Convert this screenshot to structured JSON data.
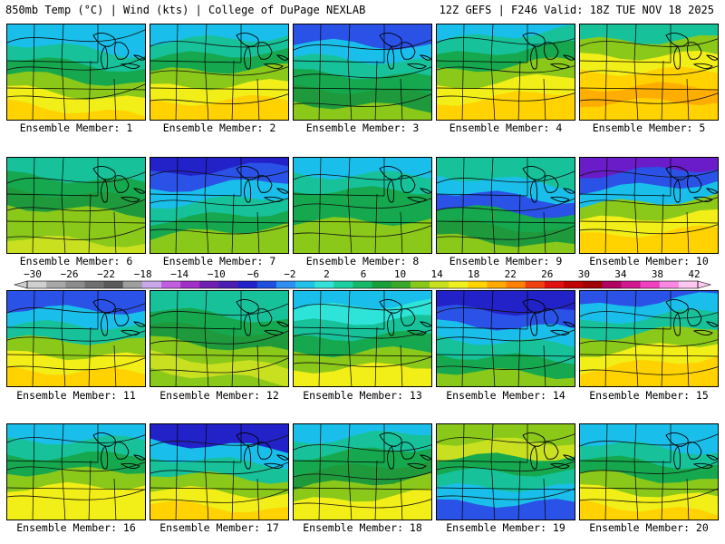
{
  "header": {
    "left": "850mb Temp (°C) | Wind (kts) | College of DuPage NEXLAB",
    "right": "12Z GEFS | F246 Valid: 18Z TUE NOV 18 2025"
  },
  "members": [
    {
      "label": "Ensemble Member: 1"
    },
    {
      "label": "Ensemble Member: 2"
    },
    {
      "label": "Ensemble Member: 3"
    },
    {
      "label": "Ensemble Member: 4"
    },
    {
      "label": "Ensemble Member: 5"
    },
    {
      "label": "Ensemble Member: 6"
    },
    {
      "label": "Ensemble Member: 7"
    },
    {
      "label": "Ensemble Member: 8"
    },
    {
      "label": "Ensemble Member: 9"
    },
    {
      "label": "Ensemble Member: 10"
    },
    {
      "label": "Ensemble Member: 11"
    },
    {
      "label": "Ensemble Member: 12"
    },
    {
      "label": "Ensemble Member: 13"
    },
    {
      "label": "Ensemble Member: 14"
    },
    {
      "label": "Ensemble Member: 15"
    },
    {
      "label": "Ensemble Member: 16"
    },
    {
      "label": "Ensemble Member: 17"
    },
    {
      "label": "Ensemble Member: 18"
    },
    {
      "label": "Ensemble Member: 19"
    },
    {
      "label": "Ensemble Member: 20"
    }
  ],
  "colorbar": {
    "labels": [
      "−30",
      "−26",
      "−22",
      "−18",
      "−14",
      "−10",
      "−6",
      "−2",
      "2",
      "6",
      "10",
      "14",
      "18",
      "22",
      "26",
      "30",
      "34",
      "38",
      "42"
    ],
    "colors": [
      "#cfcfcf",
      "#a8a8a8",
      "#8c8c8c",
      "#707070",
      "#5a5a5a",
      "#9e9e9e",
      "#c8a8e8",
      "#c060e0",
      "#a030c8",
      "#7020b0",
      "#4b1fb0",
      "#2222c8",
      "#2050e0",
      "#2f8ff0",
      "#23c0e8",
      "#34e0d8",
      "#1dcfa0",
      "#16b86a",
      "#1a9e3c",
      "#39a82a",
      "#88c81a",
      "#c8e020",
      "#f0f020",
      "#ffd400",
      "#ffa800",
      "#ff8000",
      "#f04010",
      "#e01010",
      "#c00000",
      "#a00000",
      "#b00060",
      "#d01890",
      "#f040c0",
      "#f888e0",
      "#ffc8f0"
    ]
  },
  "palette": {
    "purple": "#6a1cc8",
    "deepblue": "#2222c8",
    "blue": "#2a52e6",
    "cyan": "#19bfea",
    "aqua": "#2ee3d8",
    "teal": "#17c29a",
    "green": "#16a84e",
    "green2": "#1e9a3c",
    "lime": "#8ac81a",
    "yellowgreen": "#c8e020",
    "yellow": "#f2ee18",
    "gold": "#ffd200",
    "orange": "#ffae00"
  }
}
